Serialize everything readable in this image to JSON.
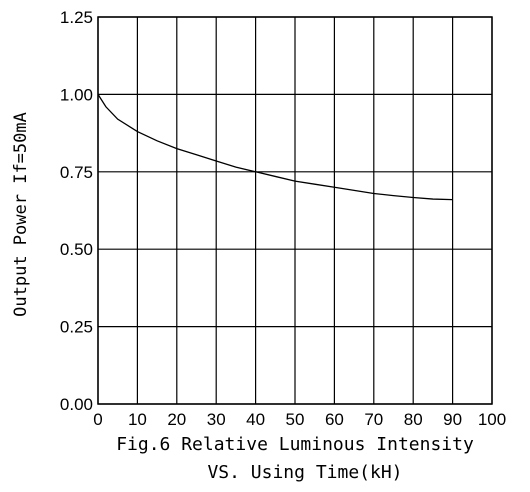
{
  "chart_data": {
    "type": "line",
    "title": "",
    "xlabel": "",
    "ylabel": "Output Power If=50mA",
    "caption_line1": "Fig.6 Relative Luminous Intensity",
    "caption_line2": "VS. Using Time(kH)",
    "xlim": [
      0,
      100
    ],
    "ylim": [
      0,
      1.25
    ],
    "x_ticks": [
      0,
      10,
      20,
      30,
      40,
      50,
      60,
      70,
      80,
      90,
      100
    ],
    "y_ticks": [
      0,
      0.25,
      0.5,
      0.75,
      1.0,
      1.25
    ],
    "x_tick_labels": [
      "0",
      "10",
      "20",
      "30",
      "40",
      "50",
      "60",
      "70",
      "80",
      "90",
      "100"
    ],
    "y_tick_labels": [
      "0.00",
      "0.25",
      "0.50",
      "0.75",
      "1.00",
      "1.25"
    ],
    "grid": true,
    "series": [
      {
        "x": [
          0,
          2,
          5,
          10,
          15,
          20,
          25,
          30,
          35,
          40,
          45,
          50,
          55,
          60,
          65,
          70,
          75,
          80,
          85,
          90
        ],
        "y": [
          1.0,
          0.96,
          0.92,
          0.88,
          0.85,
          0.825,
          0.805,
          0.785,
          0.765,
          0.75,
          0.735,
          0.72,
          0.71,
          0.7,
          0.69,
          0.68,
          0.673,
          0.667,
          0.662,
          0.66
        ]
      }
    ]
  }
}
